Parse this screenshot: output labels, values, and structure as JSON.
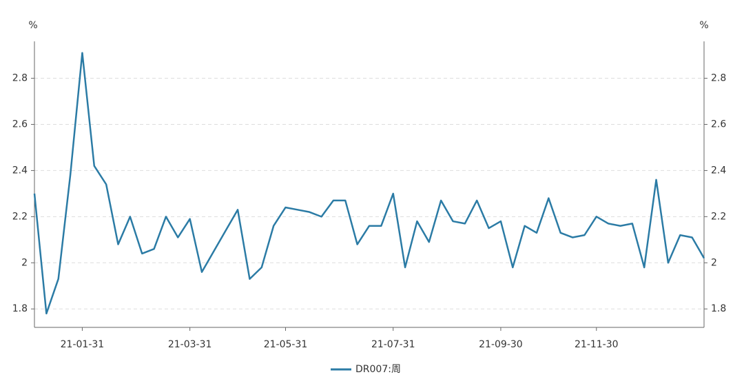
{
  "chart_data": {
    "type": "line",
    "y_unit": "%",
    "y2_unit": "%",
    "categories": [
      null,
      null,
      null,
      null,
      "21-01-31",
      null,
      null,
      null,
      null,
      null,
      null,
      null,
      null,
      "21-03-31",
      null,
      null,
      null,
      null,
      null,
      null,
      null,
      "21-05-31",
      null,
      null,
      null,
      null,
      null,
      null,
      null,
      null,
      "21-07-31",
      null,
      null,
      null,
      null,
      null,
      null,
      null,
      null,
      "21-09-30",
      null,
      null,
      null,
      null,
      null,
      null,
      null,
      "21-11-30",
      null,
      null,
      null,
      null,
      null,
      null,
      null,
      null,
      null
    ],
    "series": [
      {
        "name": "DR007:周",
        "color": "#2b7ba5",
        "values": [
          2.3,
          1.78,
          1.93,
          2.38,
          2.91,
          2.42,
          2.34,
          2.08,
          2.2,
          2.04,
          2.06,
          2.2,
          2.11,
          2.19,
          1.96,
          2.05,
          2.14,
          2.23,
          1.93,
          1.98,
          2.16,
          2.24,
          2.23,
          2.22,
          2.2,
          2.27,
          2.27,
          2.08,
          2.16,
          2.16,
          2.3,
          1.98,
          2.18,
          2.09,
          2.27,
          2.18,
          2.17,
          2.27,
          2.15,
          2.18,
          1.98,
          2.16,
          2.13,
          2.28,
          2.13,
          2.11,
          2.12,
          2.2,
          2.17,
          2.16,
          2.17,
          1.98,
          2.36,
          2.0,
          2.12,
          2.11,
          2.02
        ]
      }
    ],
    "ylim": [
      1.72,
      2.96
    ],
    "yticks": [
      1.8,
      2,
      2.2,
      2.4,
      2.6,
      2.8
    ],
    "y2lim": [
      1.72,
      2.96
    ],
    "y2ticks": [
      1.8,
      2,
      2.2,
      2.4,
      2.6,
      2.8
    ],
    "grid": true
  }
}
